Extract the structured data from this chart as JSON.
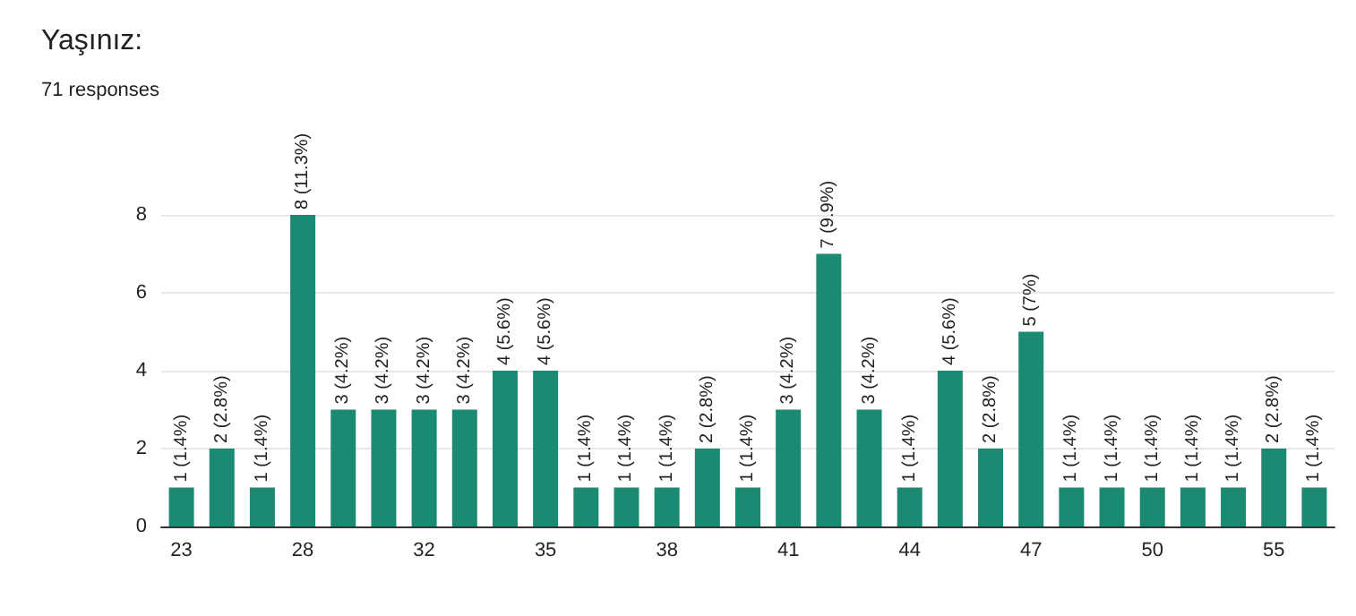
{
  "chart_data": {
    "type": "bar",
    "title": "Yaşınız:",
    "subtitle": "71 responses",
    "categories": [
      "23",
      null,
      null,
      "28",
      null,
      null,
      "32",
      null,
      null,
      "35",
      null,
      null,
      "38",
      null,
      null,
      "41",
      null,
      null,
      "44",
      null,
      null,
      "47",
      null,
      null,
      "50",
      null,
      null,
      "55",
      null
    ],
    "values": [
      1,
      2,
      1,
      8,
      3,
      3,
      3,
      3,
      4,
      4,
      1,
      1,
      1,
      2,
      1,
      3,
      7,
      3,
      1,
      4,
      2,
      5,
      1,
      1,
      1,
      1,
      1,
      2,
      1
    ],
    "value_labels": [
      "1 (1.4%)",
      "2 (2.8%)",
      "1 (1.4%)",
      "8 (11.3%)",
      "3 (4.2%)",
      "3 (4.2%)",
      "3 (4.2%)",
      "3 (4.2%)",
      "4 (5.6%)",
      "4 (5.6%)",
      "1 (1.4%)",
      "1 (1.4%)",
      "1 (1.4%)",
      "2 (2.8%)",
      "1 (1.4%)",
      "3 (4.2%)",
      "7 (9.9%)",
      "3 (4.2%)",
      "1 (1.4%)",
      "4 (5.6%)",
      "2 (2.8%)",
      "5 (7%)",
      "1 (1.4%)",
      "1 (1.4%)",
      "1 (1.4%)",
      "1 (1.4%)",
      "1 (1.4%)",
      "2 (2.8%)",
      "1 (1.4%)"
    ],
    "color": "#1a8a73",
    "ylim": [
      0,
      8
    ],
    "yticks": [
      0,
      2,
      4,
      6,
      8
    ],
    "grid": "y"
  }
}
